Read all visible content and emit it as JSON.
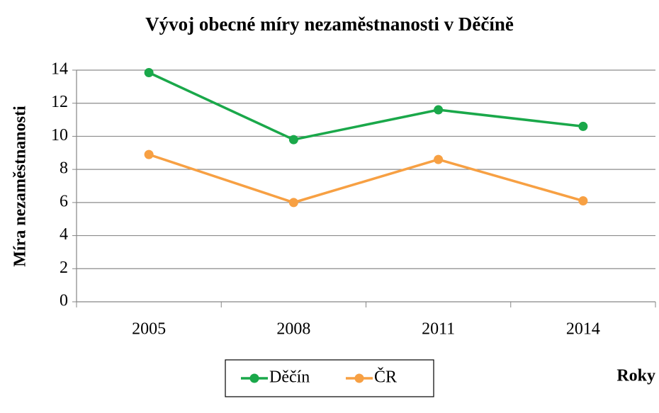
{
  "chart_data": {
    "type": "line",
    "title": "Vývoj obecné míry nezaměstnanosti v Děčíně",
    "y_label": "Míra nezaměstnanosti",
    "x_label": "Roky",
    "categories": [
      "2005",
      "2008",
      "2011",
      "2014"
    ],
    "series": [
      {
        "name": "Děčín",
        "color": "#1aa84a",
        "values": [
          13.85,
          9.8,
          11.6,
          10.6
        ]
      },
      {
        "name": "ČR",
        "color": "#f7a043",
        "values": [
          8.9,
          6.0,
          8.6,
          6.1
        ]
      }
    ],
    "ylim": [
      0,
      14
    ],
    "yticks": [
      0,
      2,
      4,
      6,
      8,
      10,
      12,
      14
    ],
    "grid": true,
    "legend": "bottom"
  }
}
